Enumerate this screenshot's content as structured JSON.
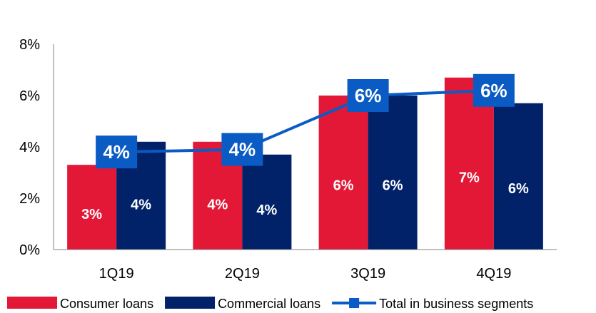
{
  "chart_data": {
    "type": "bar",
    "categories": [
      "1Q19",
      "2Q19",
      "3Q19",
      "4Q19"
    ],
    "ylim": [
      0,
      8
    ],
    "yticks": [
      "0%",
      "2%",
      "4%",
      "6%",
      "8%"
    ],
    "grid": false,
    "legend_position": "bottom",
    "series": [
      {
        "name": "Consumer loans",
        "type": "bar",
        "color": "#E31837",
        "values": [
          3.3,
          4.2,
          6.0,
          6.7
        ],
        "labels": [
          "3%",
          "4%",
          "6%",
          "7%"
        ]
      },
      {
        "name": "Commercial loans",
        "type": "bar",
        "color": "#012169",
        "values": [
          4.2,
          3.7,
          6.0,
          5.7
        ],
        "labels": [
          "4%",
          "4%",
          "6%",
          "6%"
        ]
      },
      {
        "name": "Total in business segments",
        "type": "line",
        "color": "#0A5CC4",
        "values": [
          3.8,
          3.9,
          6.0,
          6.2
        ],
        "labels": [
          "4%",
          "4%",
          "6%",
          "6%"
        ]
      }
    ]
  }
}
